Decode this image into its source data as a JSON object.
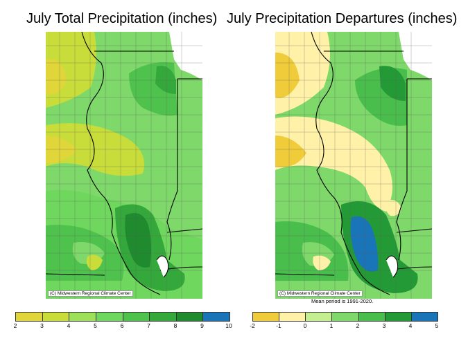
{
  "left_panel": {
    "title": "July Total Precipitation (inches)",
    "credit": "(C) Midwestern Regional Climate Center",
    "legend": {
      "ticks": [
        "2",
        "3",
        "4",
        "5",
        "6",
        "7",
        "8",
        "9",
        "10"
      ],
      "colors": [
        "#e0d63a",
        "#c8dc3a",
        "#9ee05a",
        "#6fd65e",
        "#4fc24e",
        "#35a83c",
        "#1f8a2e",
        "#1a74b8"
      ]
    }
  },
  "right_panel": {
    "title": "July Precipitation Departures (inches)",
    "credit": "(C) Midwestern Regional Climate Center",
    "mean_note": "Mean period is 1991-2020.",
    "legend": {
      "ticks": [
        "-2",
        "-1",
        "0",
        "1",
        "2",
        "3",
        "4",
        "5"
      ],
      "colors": [
        "#f0cc3a",
        "#fff2a8",
        "#c4ee90",
        "#7ed86a",
        "#49be4c",
        "#249a36",
        "#1a74b8"
      ]
    }
  },
  "palette": {
    "lake": "#ffffff",
    "border": "#000000",
    "county": "#5a5a5a"
  }
}
